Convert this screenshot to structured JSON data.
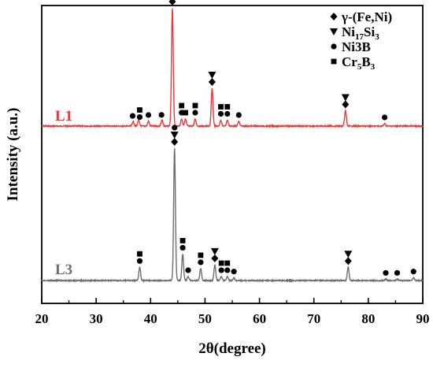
{
  "chart_data": {
    "type": "line",
    "xlabel": "2θ(degree)",
    "ylabel": "Intensity (a.u.)",
    "xlim": [
      20,
      90
    ],
    "x_ticks": [
      20,
      30,
      40,
      50,
      60,
      70,
      80,
      90
    ],
    "y_ticks_labeled": false,
    "grid": false,
    "legend_position": "top-right",
    "legend": [
      {
        "symbol": "diamond",
        "label": "γ-(Fe,Ni)"
      },
      {
        "symbol": "triangle",
        "label": "Ni17Si3"
      },
      {
        "symbol": "circle",
        "label": "Ni3B"
      },
      {
        "symbol": "square",
        "label": "Cr5B3"
      }
    ],
    "series": [
      {
        "name": "L1",
        "color": "#e8393b",
        "peaks": [
          {
            "x": 36.8,
            "h": 0.04
          },
          {
            "x": 37.8,
            "h": 0.05
          },
          {
            "x": 39.6,
            "h": 0.04
          },
          {
            "x": 42.1,
            "h": 0.05
          },
          {
            "x": 44.0,
            "h": 1.0
          },
          {
            "x": 45.7,
            "h": 0.06
          },
          {
            "x": 46.4,
            "h": 0.06
          },
          {
            "x": 48.2,
            "h": 0.06
          },
          {
            "x": 51.3,
            "h": 0.32
          },
          {
            "x": 52.9,
            "h": 0.05
          },
          {
            "x": 54.1,
            "h": 0.05
          },
          {
            "x": 56.2,
            "h": 0.04
          },
          {
            "x": 75.8,
            "h": 0.13
          },
          {
            "x": 83.0,
            "h": 0.02
          }
        ],
        "markers": [
          {
            "x": 36.7,
            "shapes": [
              "circle"
            ]
          },
          {
            "x": 38.0,
            "shapes": [
              "circle",
              "square"
            ]
          },
          {
            "x": 39.6,
            "shapes": [
              "circle"
            ]
          },
          {
            "x": 42.0,
            "shapes": [
              "circle"
            ]
          },
          {
            "x": 44.0,
            "shapes": [
              "diamond",
              "triangle",
              "circle"
            ]
          },
          {
            "x": 45.7,
            "shapes": [
              "circle",
              "square"
            ]
          },
          {
            "x": 46.4,
            "shapes": [
              "square"
            ]
          },
          {
            "x": 48.2,
            "shapes": [
              "circle",
              "square"
            ]
          },
          {
            "x": 51.3,
            "shapes": [
              "diamond",
              "triangle"
            ]
          },
          {
            "x": 52.9,
            "shapes": [
              "circle",
              "square"
            ]
          },
          {
            "x": 54.1,
            "shapes": [
              "circle",
              "square"
            ]
          },
          {
            "x": 56.2,
            "shapes": [
              "circle"
            ]
          },
          {
            "x": 75.8,
            "shapes": [
              "diamond",
              "triangle"
            ]
          },
          {
            "x": 83.0,
            "shapes": [
              "circle"
            ]
          }
        ]
      },
      {
        "name": "L3",
        "color": "#6d6d6d",
        "peaks": [
          {
            "x": 38.0,
            "h": 0.1
          },
          {
            "x": 44.4,
            "h": 1.0
          },
          {
            "x": 45.9,
            "h": 0.2
          },
          {
            "x": 46.9,
            "h": 0.03
          },
          {
            "x": 49.2,
            "h": 0.09
          },
          {
            "x": 51.8,
            "h": 0.12
          },
          {
            "x": 53.0,
            "h": 0.03
          },
          {
            "x": 54.1,
            "h": 0.03
          },
          {
            "x": 55.3,
            "h": 0.02
          },
          {
            "x": 76.3,
            "h": 0.1
          },
          {
            "x": 83.2,
            "h": 0.01
          },
          {
            "x": 85.3,
            "h": 0.01
          },
          {
            "x": 88.3,
            "h": 0.02
          }
        ],
        "markers": [
          {
            "x": 38.0,
            "shapes": [
              "circle",
              "square"
            ]
          },
          {
            "x": 44.4,
            "shapes": [
              "diamond",
              "triangle",
              "circle"
            ]
          },
          {
            "x": 45.9,
            "shapes": [
              "circle",
              "square"
            ]
          },
          {
            "x": 46.9,
            "shapes": [
              "circle"
            ]
          },
          {
            "x": 49.2,
            "shapes": [
              "circle",
              "square"
            ]
          },
          {
            "x": 51.8,
            "shapes": [
              "diamond",
              "triangle"
            ]
          },
          {
            "x": 53.0,
            "shapes": [
              "circle",
              "square"
            ]
          },
          {
            "x": 54.1,
            "shapes": [
              "circle",
              "square"
            ]
          },
          {
            "x": 55.3,
            "shapes": [
              "circle"
            ]
          },
          {
            "x": 76.3,
            "shapes": [
              "diamond",
              "triangle"
            ]
          },
          {
            "x": 83.2,
            "shapes": [
              "circle"
            ]
          },
          {
            "x": 85.3,
            "shapes": [
              "circle"
            ]
          },
          {
            "x": 88.3,
            "shapes": [
              "circle"
            ]
          }
        ]
      }
    ]
  }
}
